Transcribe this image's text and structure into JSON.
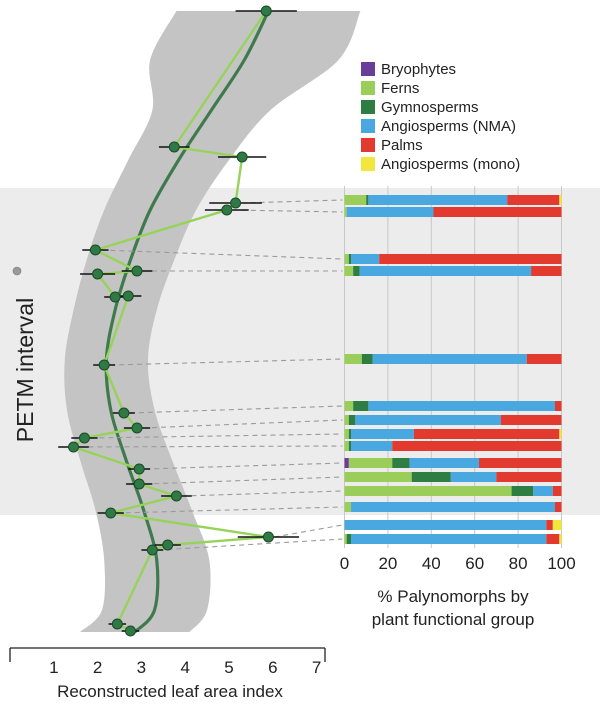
{
  "chart_data": [
    {
      "type": "line",
      "chart": "leaf-area-index-profile",
      "xlabel": "Reconstructed leaf area index",
      "ylabel": "PETM interval",
      "xticks": [
        "1",
        "2",
        "3",
        "4",
        "5",
        "6",
        "7"
      ],
      "xlim": [
        0,
        7.2
      ],
      "smoothed_trend": [
        {
          "x": 5.9,
          "y": 11
        },
        {
          "x": 5.35,
          "y": 60
        },
        {
          "x": 4.6,
          "y": 110
        },
        {
          "x": 3.85,
          "y": 160
        },
        {
          "x": 3.2,
          "y": 210
        },
        {
          "x": 2.75,
          "y": 260
        },
        {
          "x": 2.4,
          "y": 310
        },
        {
          "x": 2.2,
          "y": 360
        },
        {
          "x": 2.3,
          "y": 410
        },
        {
          "x": 2.65,
          "y": 460
        },
        {
          "x": 3.05,
          "y": 510
        },
        {
          "x": 3.35,
          "y": 560
        },
        {
          "x": 3.3,
          "y": 610
        },
        {
          "x": 2.85,
          "y": 632
        }
      ],
      "band_half_width": [
        2.1,
        2.15,
        1.35,
        1.15,
        1.05,
        1.0,
        0.95,
        0.95,
        1.0,
        1.05,
        1.1,
        1.2,
        1.2,
        1.25
      ],
      "samples": [
        {
          "lai": 5.85,
          "err": 0.7,
          "y": 11
        },
        {
          "lai": 3.75,
          "err": 0.35,
          "y": 147
        },
        {
          "lai": 5.3,
          "err": 0.55,
          "y": 157
        },
        {
          "lai": 5.15,
          "err": 0.6,
          "y": 203
        },
        {
          "lai": 4.95,
          "err": 0.5,
          "y": 210
        },
        {
          "lai": 1.95,
          "err": 0.3,
          "y": 250
        },
        {
          "lai": 2.9,
          "err": 0.35,
          "y": 271
        },
        {
          "lai": 2.0,
          "err": 0.4,
          "y": 274
        },
        {
          "lai": 2.4,
          "err": 0.25,
          "y": 297
        },
        {
          "lai": 2.7,
          "err": 0.3,
          "y": 296
        },
        {
          "lai": 2.15,
          "err": 0.25,
          "y": 365
        },
        {
          "lai": 2.6,
          "err": 0.25,
          "y": 413
        },
        {
          "lai": 2.9,
          "err": 0.3,
          "y": 428
        },
        {
          "lai": 1.7,
          "err": 0.3,
          "y": 438
        },
        {
          "lai": 1.45,
          "err": 0.35,
          "y": 447
        },
        {
          "lai": 2.95,
          "err": 0.25,
          "y": 469
        },
        {
          "lai": 2.95,
          "err": 0.3,
          "y": 484
        },
        {
          "lai": 3.8,
          "err": 0.35,
          "y": 496
        },
        {
          "lai": 2.3,
          "err": 0.3,
          "y": 513
        },
        {
          "lai": 5.9,
          "err": 0.7,
          "y": 537
        },
        {
          "lai": 3.6,
          "err": 0.3,
          "y": 545
        },
        {
          "lai": 3.25,
          "err": 0.25,
          "y": 550
        },
        {
          "lai": 2.45,
          "err": 0.2,
          "y": 624
        },
        {
          "lai": 2.75,
          "err": 0.2,
          "y": 631
        }
      ]
    },
    {
      "type": "bar",
      "chart": "palynomorph-composition",
      "xlabel_line1": "% Palynomorphs by",
      "xlabel_line2": "plant functional group",
      "xticks": [
        "0",
        "20",
        "40",
        "60",
        "80",
        "100"
      ],
      "xlim": [
        0,
        100
      ],
      "legend": [
        {
          "name": "Bryophytes",
          "color": "#6a3d9a"
        },
        {
          "name": "Ferns",
          "color": "#9acd5a"
        },
        {
          "name": "Gymnosperms",
          "color": "#2e7d43"
        },
        {
          "name": "Angiosperms (NMA)",
          "color": "#4aa8e0"
        },
        {
          "name": "Palms",
          "color": "#e23a2e"
        },
        {
          "name": "Angiosperms (mono)",
          "color": "#f2e63a"
        }
      ],
      "bars": [
        {
          "sample_index": 3,
          "row_y": 200,
          "values": [
            0,
            10,
            1,
            64,
            24,
            1
          ]
        },
        {
          "sample_index": 4,
          "row_y": 212,
          "values": [
            0,
            1,
            0,
            40,
            59,
            0
          ]
        },
        {
          "sample_index": 5,
          "row_y": 259,
          "values": [
            0,
            2,
            1,
            13,
            84,
            0
          ]
        },
        {
          "sample_index": 6,
          "row_y": 271,
          "values": [
            0,
            4,
            3,
            79,
            14,
            0
          ]
        },
        {
          "sample_index": 10,
          "row_y": 359,
          "values": [
            0,
            8,
            5,
            71,
            16,
            0
          ]
        },
        {
          "sample_index": 11,
          "row_y": 406,
          "values": [
            0,
            4,
            7,
            86,
            3,
            0
          ]
        },
        {
          "sample_index": 12,
          "row_y": 420,
          "values": [
            0,
            2,
            3,
            67,
            28,
            0
          ]
        },
        {
          "sample_index": 13,
          "row_y": 434,
          "values": [
            0,
            2,
            1,
            29,
            67,
            1
          ]
        },
        {
          "sample_index": 14,
          "row_y": 446,
          "values": [
            0,
            2,
            1,
            19,
            78,
            0
          ]
        },
        {
          "sample_index": 15,
          "row_y": 463,
          "values": [
            2,
            20,
            8,
            32,
            38,
            0
          ]
        },
        {
          "sample_index": 16,
          "row_y": 477,
          "values": [
            0,
            31,
            18,
            21,
            30,
            0
          ]
        },
        {
          "sample_index": 17,
          "row_y": 491,
          "values": [
            0,
            77,
            10,
            9,
            4,
            0
          ]
        },
        {
          "sample_index": 18,
          "row_y": 507,
          "values": [
            0,
            3,
            0,
            94,
            3,
            0
          ]
        },
        {
          "sample_index": 19,
          "row_y": 525,
          "values": [
            0,
            0,
            0,
            93,
            3,
            4
          ]
        },
        {
          "sample_index": 21,
          "row_y": 539,
          "values": [
            0,
            1,
            2,
            90,
            6,
            1
          ]
        }
      ]
    }
  ]
}
